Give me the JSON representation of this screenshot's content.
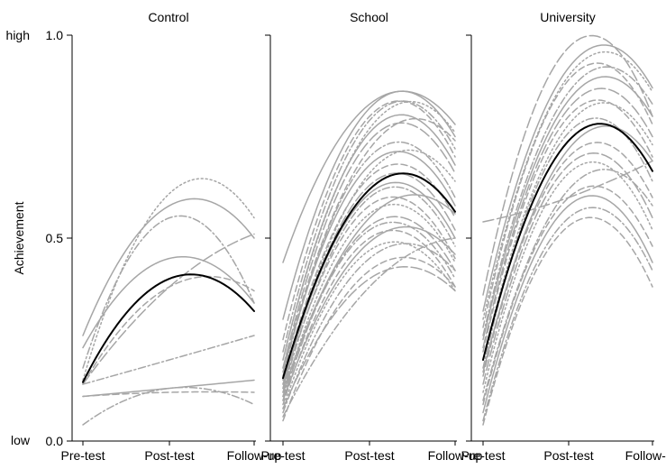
{
  "chart_data": {
    "type": "line",
    "ylabel": "Achievement",
    "ylim": [
      0.0,
      1.0
    ],
    "y_ticks": [
      {
        "value": 0.0,
        "label": "0.0"
      },
      {
        "value": 0.5,
        "label": "0.5"
      },
      {
        "value": 1.0,
        "label": "1.0"
      }
    ],
    "y_extreme_labels": {
      "low": "low",
      "high": "high"
    },
    "x_categories": [
      "Pre-test",
      "Post-test",
      "Follow-up"
    ],
    "grid": false,
    "colors": {
      "individual": "#a6a6a6",
      "mean": "#000000"
    },
    "panels": [
      {
        "title": "Control",
        "mean": [
          0.145,
          0.4,
          0.32
        ],
        "individual": [
          {
            "values": [
              0.26,
              0.58,
              0.5
            ],
            "dash": "solid"
          },
          {
            "values": [
              0.23,
              0.45,
              0.34
            ],
            "dash": "solid"
          },
          {
            "values": [
              0.15,
              0.61,
              0.55
            ],
            "dash": "dot"
          },
          {
            "values": [
              0.18,
              0.55,
              0.34
            ],
            "dash": "dashdot"
          },
          {
            "values": [
              0.14,
              0.38,
              0.51
            ],
            "dash": "longdash"
          },
          {
            "values": [
              0.14,
              0.38,
              0.37
            ],
            "dash": "dash"
          },
          {
            "values": [
              0.14,
              0.2,
              0.26
            ],
            "dash": "dashdot"
          },
          {
            "values": [
              0.11,
              0.13,
              0.15
            ],
            "dash": "solid"
          },
          {
            "values": [
              0.11,
              0.12,
              0.12
            ],
            "dash": "dash"
          },
          {
            "values": [
              0.04,
              0.13,
              0.09
            ],
            "dash": "dashdot"
          }
        ]
      },
      {
        "title": "School",
        "mean": [
          0.155,
          0.62,
          0.565
        ],
        "individual": [
          {
            "values": [
              0.44,
              0.83,
              0.78
            ],
            "dash": "solid"
          },
          {
            "values": [
              0.3,
              0.82,
              0.75
            ],
            "dash": "solid"
          },
          {
            "values": [
              0.25,
              0.8,
              0.7
            ],
            "dash": "dash"
          },
          {
            "values": [
              0.22,
              0.79,
              0.72
            ],
            "dash": "dashdot"
          },
          {
            "values": [
              0.2,
              0.77,
              0.76
            ],
            "dash": "dot"
          },
          {
            "values": [
              0.2,
              0.76,
              0.68
            ],
            "dash": "solid"
          },
          {
            "values": [
              0.18,
              0.74,
              0.66
            ],
            "dash": "longdash"
          },
          {
            "values": [
              0.18,
              0.72,
              0.74
            ],
            "dash": "dash"
          },
          {
            "values": [
              0.16,
              0.7,
              0.6
            ],
            "dash": "dashdot"
          },
          {
            "values": [
              0.17,
              0.68,
              0.58
            ],
            "dash": "solid"
          },
          {
            "values": [
              0.14,
              0.66,
              0.64
            ],
            "dash": "dot"
          },
          {
            "values": [
              0.15,
              0.65,
              0.55
            ],
            "dash": "dash"
          },
          {
            "values": [
              0.13,
              0.63,
              0.52
            ],
            "dash": "longdash"
          },
          {
            "values": [
              0.14,
              0.61,
              0.5
            ],
            "dash": "solid"
          },
          {
            "values": [
              0.12,
              0.6,
              0.48
            ],
            "dash": "dashdot"
          },
          {
            "values": [
              0.13,
              0.58,
              0.45
            ],
            "dash": "dash"
          },
          {
            "values": [
              0.11,
              0.56,
              0.44
            ],
            "dash": "dot"
          },
          {
            "values": [
              0.12,
              0.55,
              0.56
            ],
            "dash": "solid"
          },
          {
            "values": [
              0.1,
              0.53,
              0.42
            ],
            "dash": "longdash"
          },
          {
            "values": [
              0.11,
              0.52,
              0.4
            ],
            "dash": "dashdot"
          },
          {
            "values": [
              0.09,
              0.5,
              0.38
            ],
            "dash": "dash"
          },
          {
            "values": [
              0.1,
              0.49,
              0.46
            ],
            "dash": "solid"
          },
          {
            "values": [
              0.08,
              0.47,
              0.37
            ],
            "dash": "dot"
          },
          {
            "values": [
              0.07,
              0.45,
              0.42
            ],
            "dash": "dashdot"
          },
          {
            "values": [
              0.05,
              0.42,
              0.38
            ],
            "dash": "dash"
          },
          {
            "values": [
              0.08,
              0.4,
              0.37
            ],
            "dash": "longdash"
          },
          {
            "values": [
              0.06,
              0.38,
              0.5
            ],
            "dash": "dashdot"
          }
        ]
      },
      {
        "title": "University",
        "mean": [
          0.2,
          0.74,
          0.665
        ],
        "individual": [
          {
            "values": [
              0.54,
              0.6,
              0.69
            ],
            "dash": "longdash"
          },
          {
            "values": [
              0.36,
              0.97,
              0.8
            ],
            "dash": "longdash"
          },
          {
            "values": [
              0.32,
              0.92,
              0.87
            ],
            "dash": "solid"
          },
          {
            "values": [
              0.3,
              0.9,
              0.86
            ],
            "dash": "dot"
          },
          {
            "values": [
              0.28,
              0.89,
              0.78
            ],
            "dash": "dash"
          },
          {
            "values": [
              0.26,
              0.86,
              0.83
            ],
            "dash": "dashdot"
          },
          {
            "values": [
              0.25,
              0.84,
              0.8
            ],
            "dash": "solid"
          },
          {
            "values": [
              0.23,
              0.82,
              0.75
            ],
            "dash": "longdash"
          },
          {
            "values": [
              0.22,
              0.8,
              0.7
            ],
            "dash": "dash"
          },
          {
            "values": [
              0.2,
              0.78,
              0.73
            ],
            "dash": "dot"
          },
          {
            "values": [
              0.18,
              0.76,
              0.64
            ],
            "dash": "dashdot"
          },
          {
            "values": [
              0.17,
              0.72,
              0.69
            ],
            "dash": "solid"
          },
          {
            "values": [
              0.16,
              0.7,
              0.6
            ],
            "dash": "dash"
          },
          {
            "values": [
              0.14,
              0.68,
              0.55
            ],
            "dash": "longdash"
          },
          {
            "values": [
              0.12,
              0.66,
              0.52
            ],
            "dash": "dot"
          },
          {
            "values": [
              0.1,
              0.62,
              0.58
            ],
            "dash": "dashdot"
          },
          {
            "values": [
              0.09,
              0.6,
              0.48
            ],
            "dash": "dash"
          },
          {
            "values": [
              0.07,
              0.58,
              0.44
            ],
            "dash": "solid"
          },
          {
            "values": [
              0.05,
              0.55,
              0.42
            ],
            "dash": "dashdot"
          },
          {
            "values": [
              0.04,
              0.53,
              0.38
            ],
            "dash": "dash"
          }
        ]
      }
    ]
  }
}
